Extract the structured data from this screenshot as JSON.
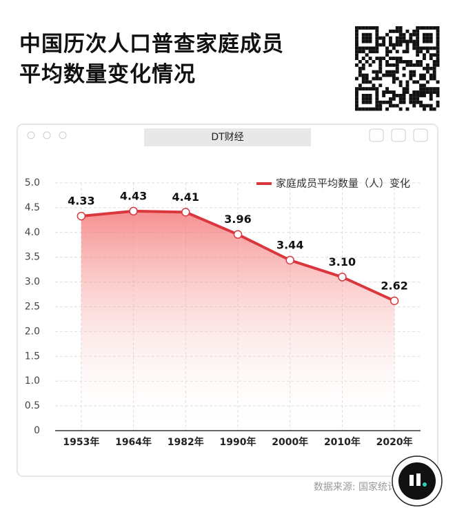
{
  "chart_data": {
    "type": "line",
    "title": [
      "中国历次人口普查家庭成员",
      "平均数量变化情况"
    ],
    "window_title": "DT财经",
    "source": "数据来源: 国家统计局",
    "categories": [
      "1953年",
      "1964年",
      "1982年",
      "1990年",
      "2000年",
      "2010年",
      "2020年"
    ],
    "series": [
      {
        "name": "家庭成员平均数量（人）变化",
        "color": "#d9363e",
        "values": [
          4.33,
          4.43,
          4.41,
          3.96,
          3.44,
          3.1,
          2.62
        ],
        "value_labels": [
          "4.33",
          "4.43",
          "4.41",
          "3.96",
          "3.44",
          "3.10",
          "2.62"
        ]
      }
    ],
    "ylim": [
      0,
      5
    ],
    "yticks": [
      0,
      0.5,
      {
        "value": 1,
        "label": "1.0"
      },
      1.5,
      {
        "value": 2,
        "label": "2.0"
      },
      2.5,
      {
        "value": 3,
        "label": "3.0"
      },
      3.5,
      {
        "value": 4,
        "label": "4.0"
      },
      4.5,
      {
        "value": 5,
        "label": "5.0"
      }
    ],
    "grid": true,
    "legend": "top-right"
  }
}
